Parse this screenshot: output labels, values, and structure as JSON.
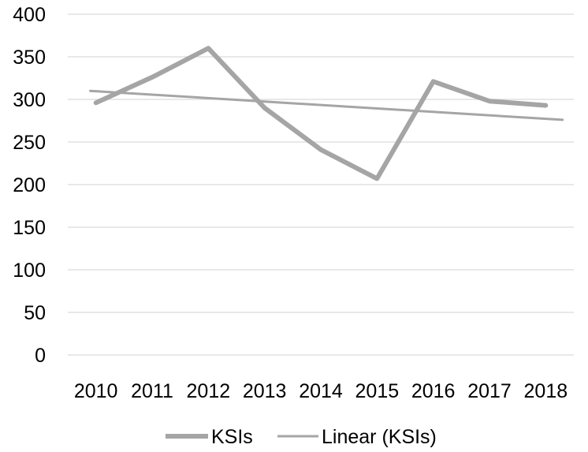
{
  "chart_data": {
    "type": "line",
    "title": "",
    "xlabel": "",
    "ylabel": "",
    "categories": [
      "2010",
      "2011",
      "2012",
      "2013",
      "2014",
      "2015",
      "2016",
      "2017",
      "2018"
    ],
    "series": [
      {
        "name": "KSIs",
        "values": [
          296,
          326,
          360,
          290,
          241,
          207,
          321,
          298,
          293
        ],
        "color": "#a5a5a5"
      },
      {
        "name": "Linear (KSIs)",
        "values": [
          310,
          305.8,
          301.5,
          297.3,
          293,
          288.8,
          284.5,
          280.3,
          276
        ],
        "color": "#a5a5a5"
      }
    ],
    "yticks": [
      "0",
      "50",
      "100",
      "150",
      "200",
      "250",
      "300",
      "350",
      "400"
    ],
    "ylim": [
      0,
      400
    ],
    "grid": true,
    "legend": "bottom"
  }
}
